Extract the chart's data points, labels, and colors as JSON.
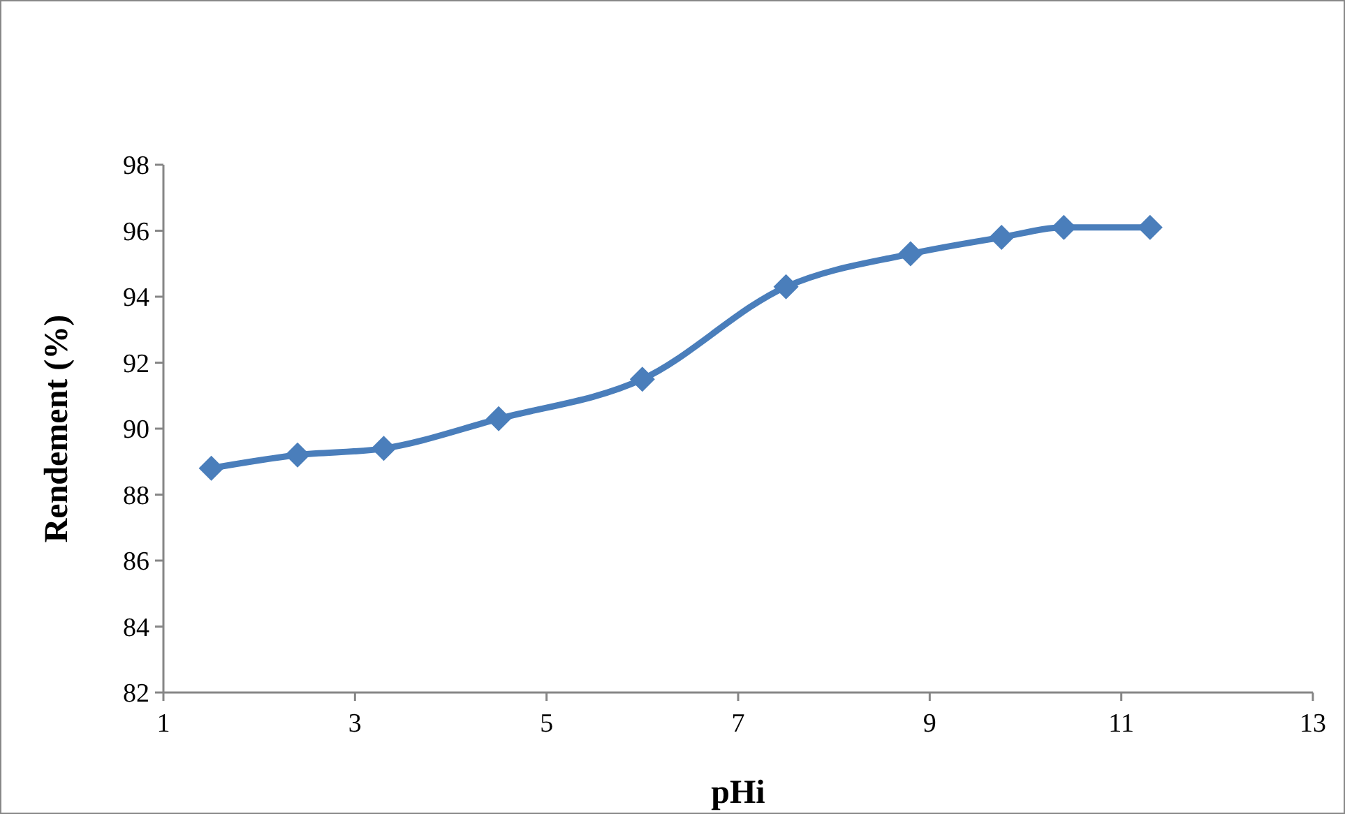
{
  "chart_data": {
    "type": "line",
    "xlabel": "pHi",
    "ylabel": "Rendement (%)",
    "x": [
      1.5,
      2.4,
      3.3,
      4.5,
      6.0,
      7.5,
      8.8,
      9.75,
      10.4,
      11.3
    ],
    "series": [
      {
        "color": "#4a7ebb",
        "values": [
          88.8,
          89.2,
          89.4,
          90.3,
          91.5,
          94.3,
          95.3,
          95.8,
          96.1,
          96.1
        ]
      }
    ],
    "xlim": [
      1,
      13
    ],
    "xticks": [
      1,
      3,
      5,
      7,
      9,
      11,
      13
    ],
    "ylim": [
      82,
      98
    ],
    "yticks": [
      82,
      84,
      86,
      88,
      90,
      92,
      94,
      96,
      98
    ],
    "marker": "diamond",
    "line_style": "solid"
  }
}
